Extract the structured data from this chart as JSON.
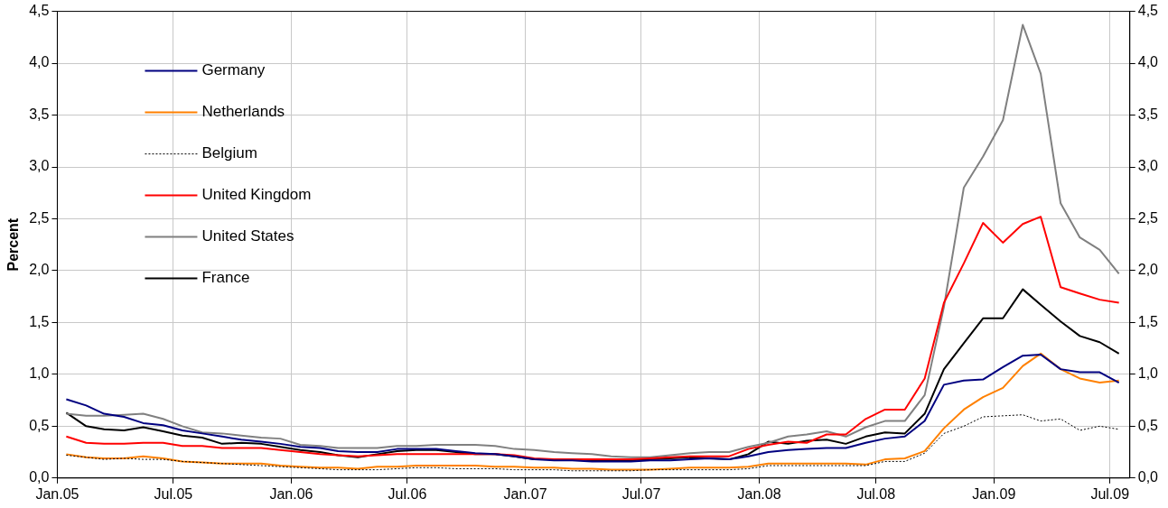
{
  "chart_data": {
    "type": "line",
    "ylabel": "Percent",
    "x": [
      "2005-01-15",
      "2005-02-15",
      "2005-03-15",
      "2005-04-15",
      "2005-05-15",
      "2005-06-15",
      "2005-07-15",
      "2005-08-15",
      "2005-09-15",
      "2005-10-15",
      "2005-11-15",
      "2005-12-15",
      "2006-01-15",
      "2006-02-15",
      "2006-03-15",
      "2006-04-15",
      "2006-05-15",
      "2006-06-15",
      "2006-07-15",
      "2006-08-15",
      "2006-09-15",
      "2006-10-15",
      "2006-11-15",
      "2006-12-15",
      "2007-01-15",
      "2007-02-15",
      "2007-03-15",
      "2007-04-15",
      "2007-05-15",
      "2007-06-15",
      "2007-07-15",
      "2007-08-15",
      "2007-09-15",
      "2007-10-15",
      "2007-11-15",
      "2007-12-15",
      "2008-01-15",
      "2008-02-15",
      "2008-03-15",
      "2008-04-15",
      "2008-05-15",
      "2008-06-15",
      "2008-07-15",
      "2008-08-15",
      "2008-09-15",
      "2008-10-15",
      "2008-11-15",
      "2008-12-15",
      "2009-01-15",
      "2009-02-15",
      "2009-03-15",
      "2009-04-15",
      "2009-05-15",
      "2009-06-15",
      "2009-07-15"
    ],
    "series": [
      {
        "name": "Germany",
        "color": "#000080",
        "values": [
          0.76,
          0.7,
          0.62,
          0.59,
          0.53,
          0.51,
          0.46,
          0.43,
          0.4,
          0.37,
          0.35,
          0.33,
          0.3,
          0.29,
          0.26,
          0.25,
          0.25,
          0.28,
          0.28,
          0.28,
          0.26,
          0.24,
          0.23,
          0.21,
          0.18,
          0.17,
          0.17,
          0.16,
          0.16,
          0.16,
          0.17,
          0.17,
          0.18,
          0.19,
          0.18,
          0.21,
          0.25,
          0.27,
          0.28,
          0.29,
          0.29,
          0.34,
          0.38,
          0.4,
          0.55,
          0.9,
          0.94,
          0.95,
          1.07,
          1.18,
          1.19,
          1.05,
          1.02,
          1.02,
          0.92
        ]
      },
      {
        "name": "Netherlands",
        "color": "#ff8000",
        "values": [
          0.23,
          0.2,
          0.19,
          0.19,
          0.21,
          0.19,
          0.16,
          0.15,
          0.14,
          0.14,
          0.14,
          0.12,
          0.11,
          0.1,
          0.1,
          0.09,
          0.11,
          0.11,
          0.12,
          0.12,
          0.12,
          0.12,
          0.11,
          0.11,
          0.1,
          0.1,
          0.09,
          0.09,
          0.08,
          0.08,
          0.08,
          0.09,
          0.1,
          0.1,
          0.1,
          0.11,
          0.14,
          0.14,
          0.14,
          0.14,
          0.14,
          0.13,
          0.18,
          0.19,
          0.26,
          0.48,
          0.66,
          0.78,
          0.87,
          1.08,
          1.2,
          1.05,
          0.96,
          0.92,
          0.94
        ]
      },
      {
        "name": "Belgium",
        "color": "#000000",
        "line_style": "dashed",
        "values": [
          0.22,
          0.2,
          0.18,
          0.19,
          0.18,
          0.18,
          0.16,
          0.15,
          0.14,
          0.13,
          0.12,
          0.11,
          0.1,
          0.09,
          0.08,
          0.08,
          0.08,
          0.09,
          0.1,
          0.1,
          0.09,
          0.09,
          0.09,
          0.08,
          0.08,
          0.08,
          0.07,
          0.07,
          0.07,
          0.07,
          0.08,
          0.08,
          0.08,
          0.08,
          0.08,
          0.09,
          0.12,
          0.12,
          0.12,
          0.12,
          0.12,
          0.12,
          0.16,
          0.16,
          0.24,
          0.43,
          0.5,
          0.59,
          0.6,
          0.61,
          0.55,
          0.57,
          0.46,
          0.5,
          0.47
        ]
      },
      {
        "name": "United Kingdom",
        "color": "#ff0000",
        "values": [
          0.4,
          0.34,
          0.33,
          0.33,
          0.34,
          0.34,
          0.31,
          0.31,
          0.29,
          0.29,
          0.29,
          0.27,
          0.25,
          0.23,
          0.22,
          0.21,
          0.22,
          0.23,
          0.23,
          0.23,
          0.23,
          0.23,
          0.23,
          0.22,
          0.19,
          0.18,
          0.18,
          0.18,
          0.18,
          0.18,
          0.19,
          0.2,
          0.21,
          0.21,
          0.21,
          0.28,
          0.32,
          0.35,
          0.34,
          0.42,
          0.42,
          0.57,
          0.66,
          0.66,
          0.96,
          1.69,
          2.07,
          2.46,
          2.27,
          2.45,
          2.52,
          1.84,
          1.78,
          1.72,
          1.69
        ]
      },
      {
        "name": "United States",
        "color": "#808080",
        "values": [
          0.62,
          0.6,
          0.6,
          0.61,
          0.62,
          0.57,
          0.5,
          0.44,
          0.43,
          0.41,
          0.39,
          0.38,
          0.32,
          0.31,
          0.29,
          0.29,
          0.29,
          0.31,
          0.31,
          0.32,
          0.32,
          0.32,
          0.31,
          0.28,
          0.27,
          0.25,
          0.24,
          0.23,
          0.21,
          0.2,
          0.2,
          0.22,
          0.24,
          0.25,
          0.25,
          0.3,
          0.34,
          0.4,
          0.42,
          0.45,
          0.4,
          0.49,
          0.55,
          0.55,
          0.8,
          1.65,
          2.8,
          3.1,
          3.45,
          4.37,
          3.9,
          2.65,
          2.32,
          2.2,
          1.97
        ]
      },
      {
        "name": "France",
        "color": "#000000",
        "values": [
          0.63,
          0.5,
          0.47,
          0.46,
          0.49,
          0.45,
          0.41,
          0.39,
          0.33,
          0.34,
          0.33,
          0.3,
          0.27,
          0.25,
          0.22,
          0.2,
          0.23,
          0.26,
          0.27,
          0.27,
          0.25,
          0.23,
          0.23,
          0.21,
          0.18,
          0.18,
          0.18,
          0.17,
          0.17,
          0.17,
          0.18,
          0.19,
          0.2,
          0.19,
          0.18,
          0.23,
          0.35,
          0.33,
          0.36,
          0.37,
          0.33,
          0.4,
          0.44,
          0.43,
          0.62,
          1.05,
          1.3,
          1.54,
          1.54,
          1.82,
          1.67,
          1.51,
          1.37,
          1.31,
          1.2
        ]
      }
    ],
    "xlim": [
      "2005-01",
      "2009-08"
    ],
    "xticks": [
      {
        "value": "2005-01",
        "label": "Jan.05"
      },
      {
        "value": "2005-07",
        "label": "Jul.05"
      },
      {
        "value": "2006-01",
        "label": "Jan.06"
      },
      {
        "value": "2006-07",
        "label": "Jul.06"
      },
      {
        "value": "2007-01",
        "label": "Jan.07"
      },
      {
        "value": "2007-07",
        "label": "Jul.07"
      },
      {
        "value": "2008-01",
        "label": "Jan.08"
      },
      {
        "value": "2008-07",
        "label": "Jul.08"
      },
      {
        "value": "2009-01",
        "label": "Jan.09"
      },
      {
        "value": "2009-07",
        "label": "Jul.09"
      }
    ],
    "ylim": [
      0,
      4.5
    ],
    "yticks": [
      {
        "value": 0,
        "label": "0,0"
      },
      {
        "value": 0.5,
        "label": "0,5"
      },
      {
        "value": 1,
        "label": "1,0"
      },
      {
        "value": 1.5,
        "label": "1,5"
      },
      {
        "value": 2,
        "label": "2,0"
      },
      {
        "value": 2.5,
        "label": "2,5"
      },
      {
        "value": 3,
        "label": "3,0"
      },
      {
        "value": 3.5,
        "label": "3,5"
      },
      {
        "value": 4,
        "label": "4,0"
      },
      {
        "value": 4.5,
        "label": "4,5"
      }
    ],
    "y2lim": [
      0,
      4.5
    ],
    "y2ticks": [
      {
        "value": 0,
        "label": "0,0"
      },
      {
        "value": 0.5,
        "label": "0,5"
      },
      {
        "value": 1,
        "label": "1,0"
      },
      {
        "value": 1.5,
        "label": "1,5"
      },
      {
        "value": 2,
        "label": "2,0"
      },
      {
        "value": 2.5,
        "label": "2,5"
      },
      {
        "value": 3,
        "label": "3,0"
      },
      {
        "value": 3.5,
        "label": "3,5"
      },
      {
        "value": 4,
        "label": "4,0"
      },
      {
        "value": 4.5,
        "label": "4,5"
      }
    ],
    "grid": true,
    "legend": "top left",
    "marker": "none"
  }
}
